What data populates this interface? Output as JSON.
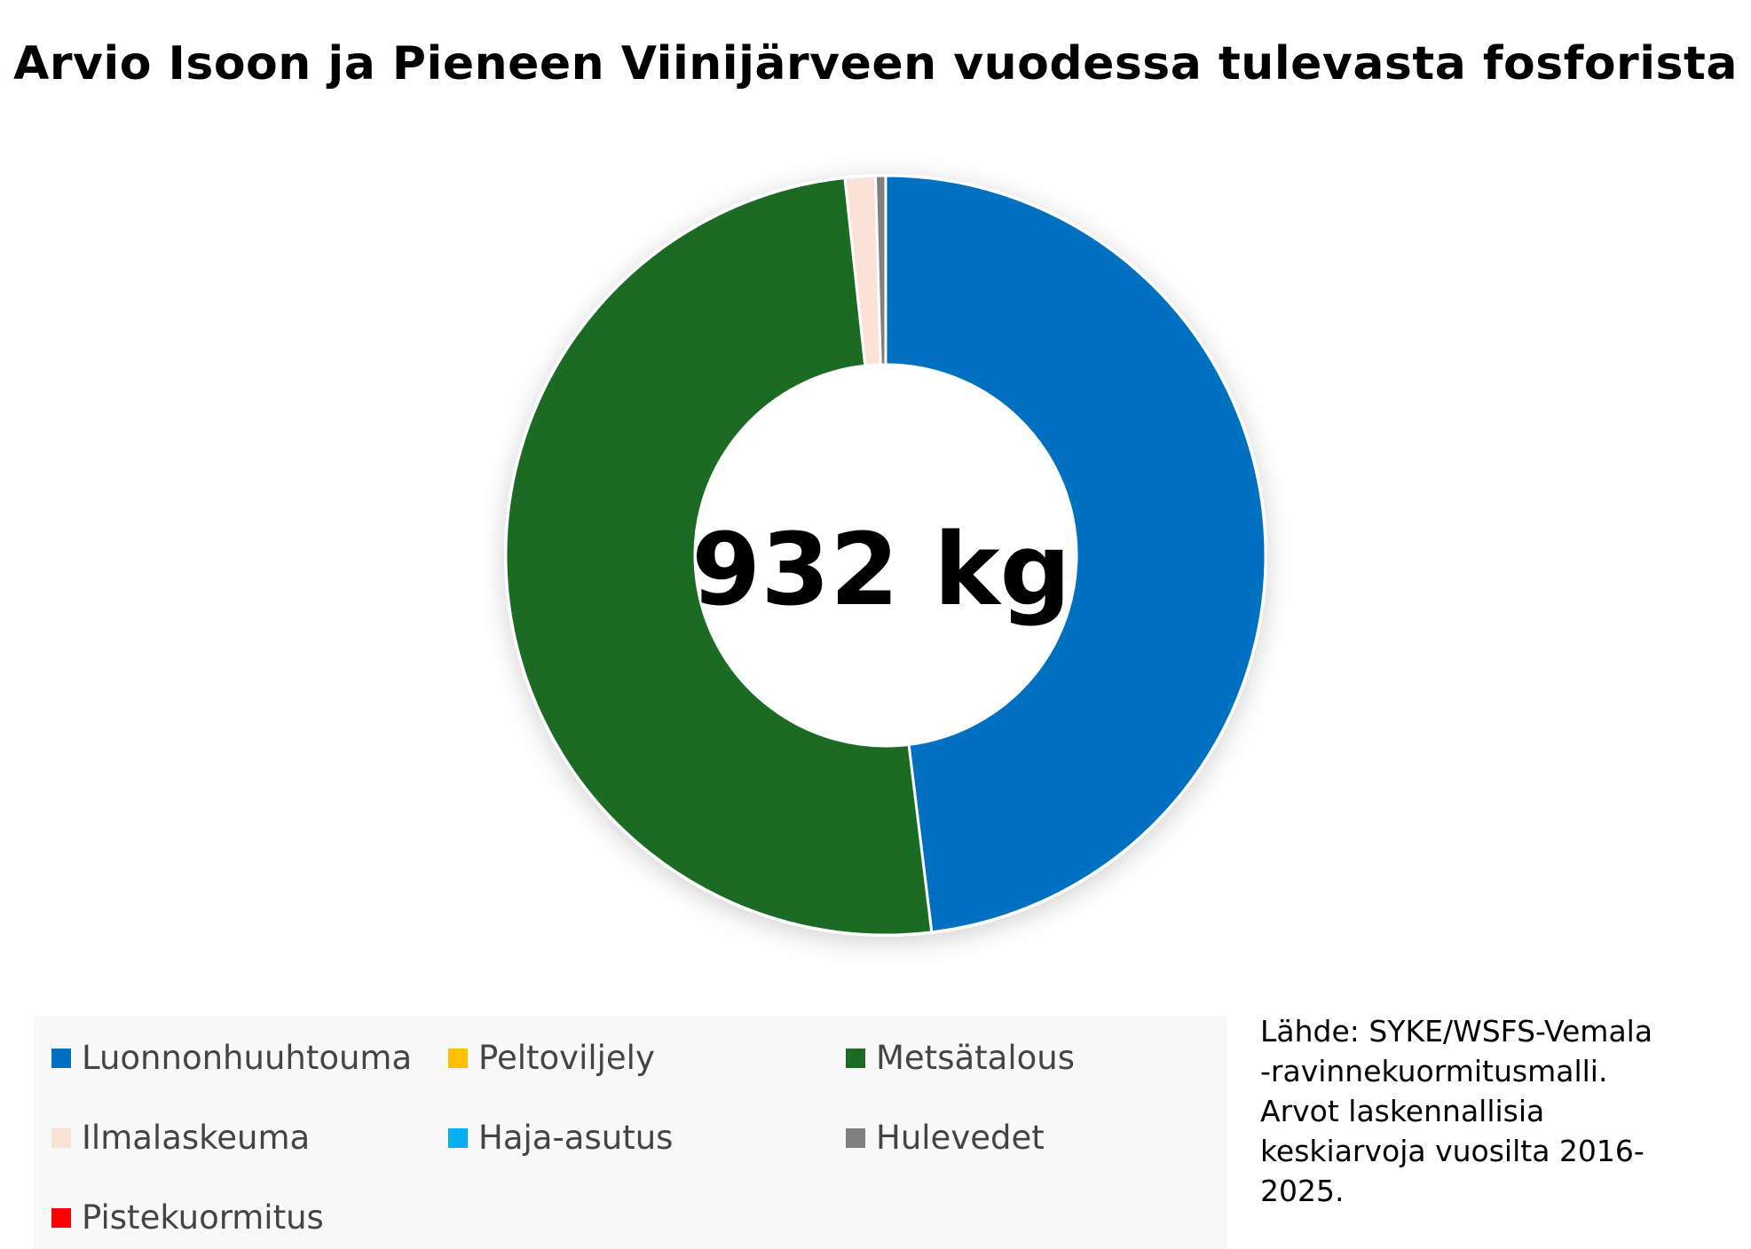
{
  "chart_data": {
    "type": "pie",
    "title": "Arvio Isoon ja Pieneen Viinijärveen vuodessa tulevasta fosforista",
    "center_label": "932 kg",
    "unit": "kg",
    "total": 932,
    "categories": [
      "Luonnonhuuhtouma",
      "Peltoviljely",
      "Metsätalous",
      "Ilmalaskeuma",
      "Haja-asutus",
      "Hulevedet",
      "Pistekuormitus"
    ],
    "values": [
      448,
      0,
      468,
      12,
      0,
      4,
      0
    ],
    "colors": [
      "#0070c0",
      "#ffc000",
      "#1b6b25",
      "#fbe1d6",
      "#00b0f0",
      "#808080",
      "#ff0000"
    ],
    "legend_position": "bottom-left",
    "grid": false
  },
  "source_lines": [
    "Lähde: SYKE/WSFS-Vemala",
    "-ravinnekuormitusmalli.",
    "Arvot laskennallisia",
    "keskiarvoja vuosilta 2016-",
    "2025."
  ]
}
